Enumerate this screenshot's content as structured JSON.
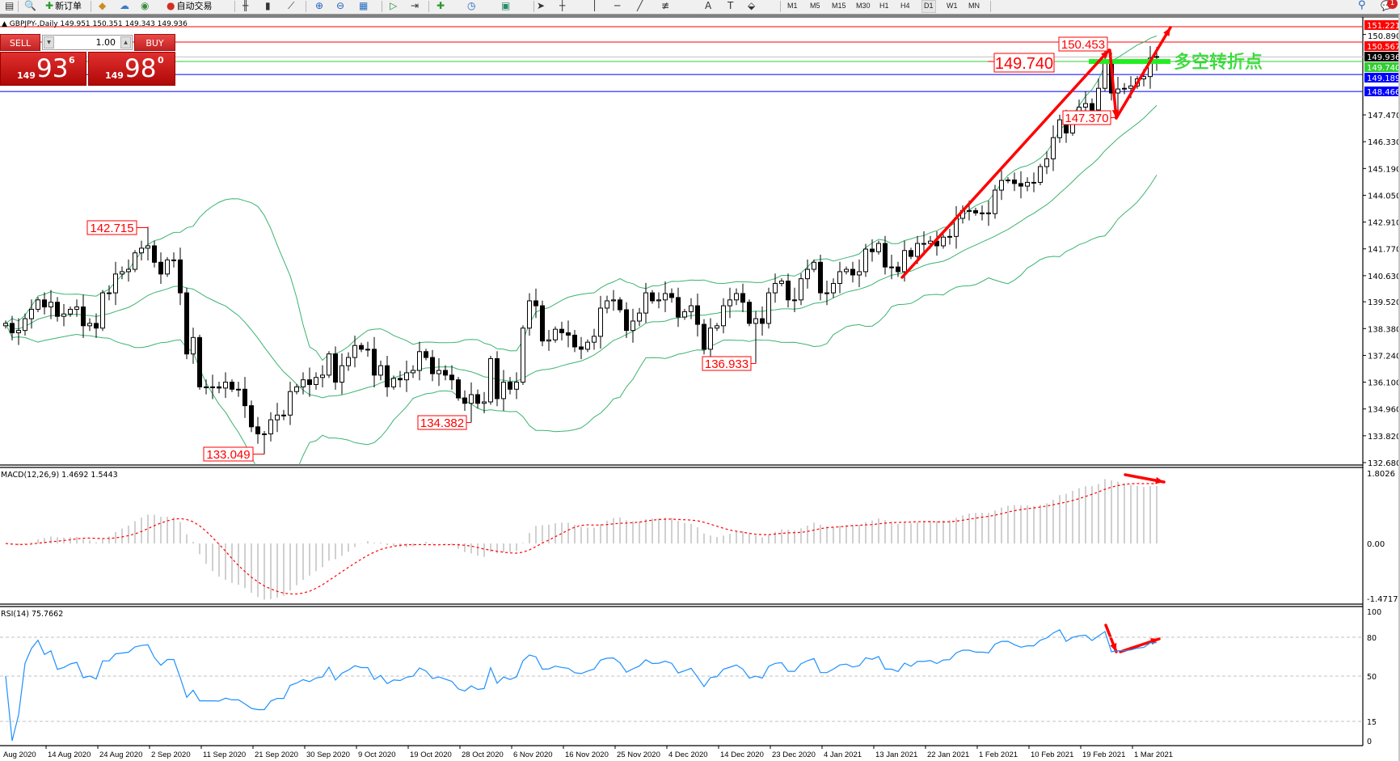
{
  "toolbar": {
    "new_order_label": "新订单",
    "autotrading_label": "自动交易",
    "icons": [
      "new-chart-icon",
      "zoom-window-icon",
      "new-order-icon",
      "metaeditor-icon",
      "signals-icon",
      "market-icon",
      "autotrading-icon",
      "bar-chart-icon",
      "candlestick-icon",
      "line-chart-icon",
      "zoom-in-icon",
      "zoom-out-icon",
      "tile-windows-icon",
      "autoscroll-icon",
      "chart-shift-icon",
      "indicators-icon",
      "periods-icon",
      "templates-icon",
      "cursor-icon",
      "crosshair-icon",
      "vertical-line-icon",
      "horizontal-line-icon",
      "trendline-icon",
      "fibonacci-icon",
      "text-icon",
      "text-label-icon",
      "arrows-icon"
    ],
    "timeframes": [
      "M1",
      "M5",
      "M15",
      "M30",
      "H1",
      "H4",
      "D1",
      "W1",
      "MN"
    ],
    "active_timeframe": "D1",
    "notification_count": "1"
  },
  "chart": {
    "title": "GBPJPY-,Daily  149.951 150.351 149.343 149.936",
    "symbol": "GBPJPY-",
    "timeframe": "Daily"
  },
  "trade_panel": {
    "sell_label": "SELL",
    "buy_label": "BUY",
    "lot": "1.00",
    "sell_price": {
      "big_figure": "149",
      "pips": "93",
      "fraction": "6"
    },
    "buy_price": {
      "big_figure": "149",
      "pips": "98",
      "fraction": "0"
    }
  },
  "price_axis": {
    "labels": [
      "150.890",
      "147.470",
      "146.330",
      "145.190",
      "144.050",
      "142.910",
      "141.770",
      "140.630",
      "139.520",
      "138.380",
      "137.240",
      "136.100",
      "134.960",
      "133.820",
      "132.680"
    ],
    "tags": [
      {
        "value": "149.936",
        "color": "#000000"
      },
      {
        "value": "151.221",
        "color": "#ff0000"
      },
      {
        "value": "150.567",
        "color": "#ff0000"
      },
      {
        "value": "149.740",
        "color": "#33cc33"
      },
      {
        "value": "149.189",
        "color": "#0000ff"
      },
      {
        "value": "148.466",
        "color": "#0000ff"
      }
    ]
  },
  "levels": [
    {
      "price": 151.221,
      "color": "#ff0000"
    },
    {
      "price": 150.567,
      "color": "#ff0000"
    },
    {
      "price": 149.936,
      "color": "#c0c0c0"
    },
    {
      "price": 149.74,
      "color": "#33cc33"
    },
    {
      "price": 149.189,
      "color": "#0000ff"
    },
    {
      "price": 148.466,
      "color": "#0000ff"
    }
  ],
  "annotations": {
    "price_labels": [
      {
        "text": "142.715",
        "bar": 22,
        "kind": "high"
      },
      {
        "text": "133.049",
        "bar": 40,
        "kind": "low"
      },
      {
        "text": "134.382",
        "bar": 72,
        "kind": "low"
      },
      {
        "text": "136.933",
        "bar": 116,
        "kind": "low"
      },
      {
        "text": "150.453",
        "bar": 170,
        "kind": "high"
      },
      {
        "text": "147.370",
        "bar": 172,
        "kind": "low"
      }
    ],
    "pivot_label": "149.740",
    "pivot_text": "多空转折点",
    "color": "#ff0000",
    "pivot_color": "#33ee33"
  },
  "time_axis": {
    "labels": [
      "Aug 2020",
      "14 Aug 2020",
      "24 Aug 2020",
      "2 Sep 2020",
      "11 Sep 2020",
      "21 Sep 2020",
      "30 Sep 2020",
      "9 Oct 2020",
      "19 Oct 2020",
      "28 Oct 2020",
      "6 Nov 2020",
      "16 Nov 2020",
      "25 Nov 2020",
      "4 Dec 2020",
      "14 Dec 2020",
      "23 Dec 2020",
      "4 Jan 2021",
      "13 Jan 2021",
      "22 Jan 2021",
      "1 Feb 2021",
      "10 Feb 2021",
      "19 Feb 2021",
      "1 Mar 2021"
    ]
  },
  "macd": {
    "label": "MACD(12,26,9) 1.4692 1.5443",
    "axis_labels": [
      "1.8026",
      "0.00",
      "-1.4717"
    ],
    "max": 1.8026,
    "min": -1.4717,
    "histogram_color": "#c0c0c0",
    "signal_color": "#ff0000"
  },
  "rsi": {
    "label": "RSI(14) 75.7662",
    "axis_labels": [
      "100",
      "80",
      "50",
      "15",
      "0"
    ],
    "levels": [
      80,
      50,
      15
    ],
    "line_color": "#1e90ff"
  },
  "colors": {
    "bollinger": "#3cb371",
    "bull_candle": "#ffffff",
    "bear_candle": "#000000"
  },
  "chart_data": {
    "type": "candlestick",
    "indicators": [
      "Bollinger Bands(20,2)",
      "MACD(12,26,9)",
      "RSI(14)"
    ],
    "ylim": [
      132.68,
      151.221
    ],
    "first_open": 138.5,
    "last_bar": {
      "open": 149.951,
      "high": 150.351,
      "low": 149.343,
      "close": 149.936
    },
    "extremes": [
      {
        "bar": 22,
        "high": 142.715
      },
      {
        "bar": 40,
        "low": 133.049
      },
      {
        "bar": 72,
        "low": 134.382
      },
      {
        "bar": 116,
        "low": 136.933
      },
      {
        "bar": 170,
        "high": 150.453
      },
      {
        "bar": 172,
        "low": 147.37
      }
    ],
    "closes": [
      138.6,
      138.2,
      138.3,
      138.8,
      139.2,
      139.6,
      139.3,
      139.5,
      138.9,
      139.0,
      139.2,
      139.3,
      138.5,
      138.6,
      138.4,
      139.9,
      139.9,
      140.7,
      140.8,
      140.9,
      141.6,
      141.8,
      141.9,
      141.2,
      140.7,
      141.3,
      141.3,
      139.9,
      137.3,
      138.0,
      135.9,
      135.9,
      135.9,
      135.85,
      136.1,
      135.8,
      135.8,
      135.1,
      134.2,
      133.9,
      133.9,
      134.5,
      134.7,
      134.7,
      135.7,
      135.9,
      136.2,
      136.0,
      136.3,
      136.4,
      137.3,
      136.1,
      136.8,
      137.15,
      137.66,
      137.5,
      137.5,
      136.4,
      136.8,
      135.9,
      136.26,
      136.2,
      136.5,
      136.6,
      137.4,
      137.15,
      136.46,
      136.6,
      136.4,
      136.2,
      135.43,
      135.2,
      135.57,
      135.2,
      135.26,
      137.1,
      135.4,
      136.1,
      135.8,
      136.1,
      138.4,
      139.56,
      139.35,
      137.85,
      137.9,
      138.35,
      138.2,
      138.1,
      137.6,
      137.5,
      137.8,
      138.05,
      139.25,
      139.56,
      139.6,
      139.18,
      138.3,
      138.7,
      139.04,
      139.9,
      139.56,
      139.6,
      139.87,
      139.7,
      138.87,
      139.1,
      139.35,
      138.56,
      137.5,
      138.4,
      138.5,
      139.35,
      139.6,
      139.87,
      139.5,
      138.6,
      138.8,
      138.6,
      139.9,
      140.3,
      140.4,
      139.6,
      139.6,
      140.5,
      140.9,
      141.2,
      139.9,
      139.9,
      140.3,
      140.8,
      140.9,
      140.66,
      140.8,
      141.76,
      141.65,
      142.0,
      141.0,
      141.0,
      140.8,
      141.7,
      141.45,
      142.0,
      142.0,
      142.1,
      141.9,
      142.27,
      142.3,
      143.07,
      143.4,
      143.4,
      143.3,
      143.3,
      143.27,
      144.27,
      144.68,
      144.7,
      144.55,
      144.44,
      144.6,
      144.6,
      145.27,
      145.6,
      146.5,
      147.26,
      146.7,
      147.47,
      147.8,
      147.95,
      147.68,
      148.6,
      149.8,
      148.4,
      148.57,
      148.6,
      148.7,
      149.0,
      149.1,
      149.88,
      149.936
    ]
  }
}
